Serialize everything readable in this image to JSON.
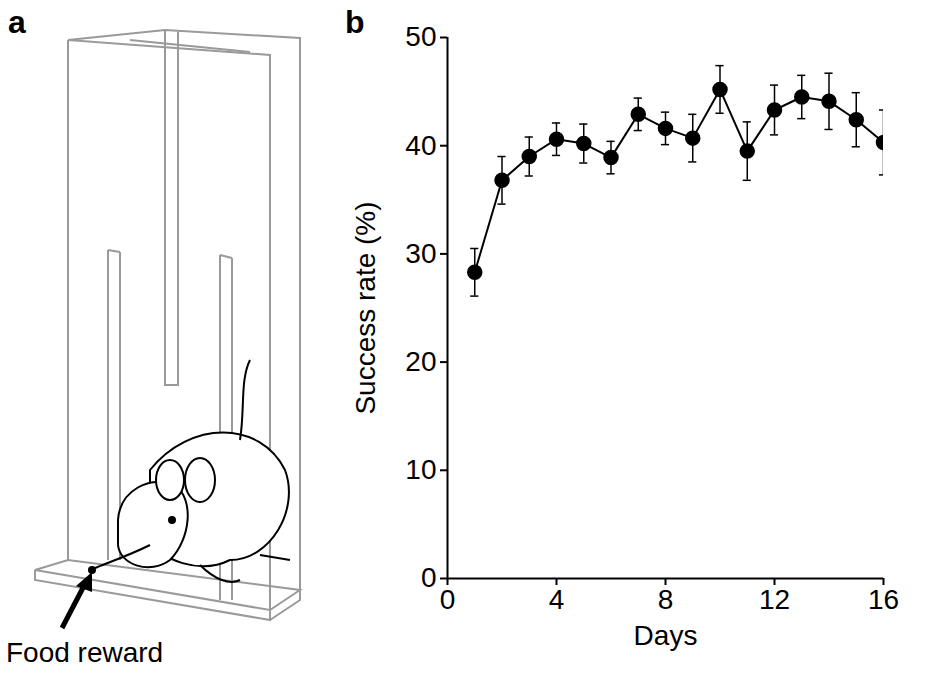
{
  "panel_a": {
    "letter": "a",
    "annotation": "Food reward"
  },
  "chart_data": {
    "type": "line",
    "panel_label": "b",
    "xlabel": "Days",
    "ylabel": "Success rate (%)",
    "x": [
      1,
      2,
      3,
      4,
      5,
      6,
      7,
      8,
      9,
      10,
      11,
      12,
      13,
      14,
      15,
      16
    ],
    "values": [
      28.3,
      36.8,
      39.0,
      40.6,
      40.2,
      38.9,
      42.9,
      41.6,
      40.7,
      45.2,
      39.5,
      43.3,
      44.5,
      44.1,
      42.4,
      40.3
    ],
    "errors": [
      2.2,
      2.2,
      1.8,
      1.5,
      1.8,
      1.5,
      1.5,
      1.5,
      2.2,
      2.2,
      2.7,
      2.3,
      2.0,
      2.6,
      2.5,
      3.0
    ],
    "color": "#000000",
    "marker": "circle",
    "line_style": "solid",
    "xlim": [
      0,
      16
    ],
    "xticks": [
      0,
      4,
      8,
      12,
      16
    ],
    "ylim": [
      0,
      50
    ],
    "yticks": [
      0,
      10,
      20,
      30,
      40,
      50
    ],
    "grid": false
  }
}
